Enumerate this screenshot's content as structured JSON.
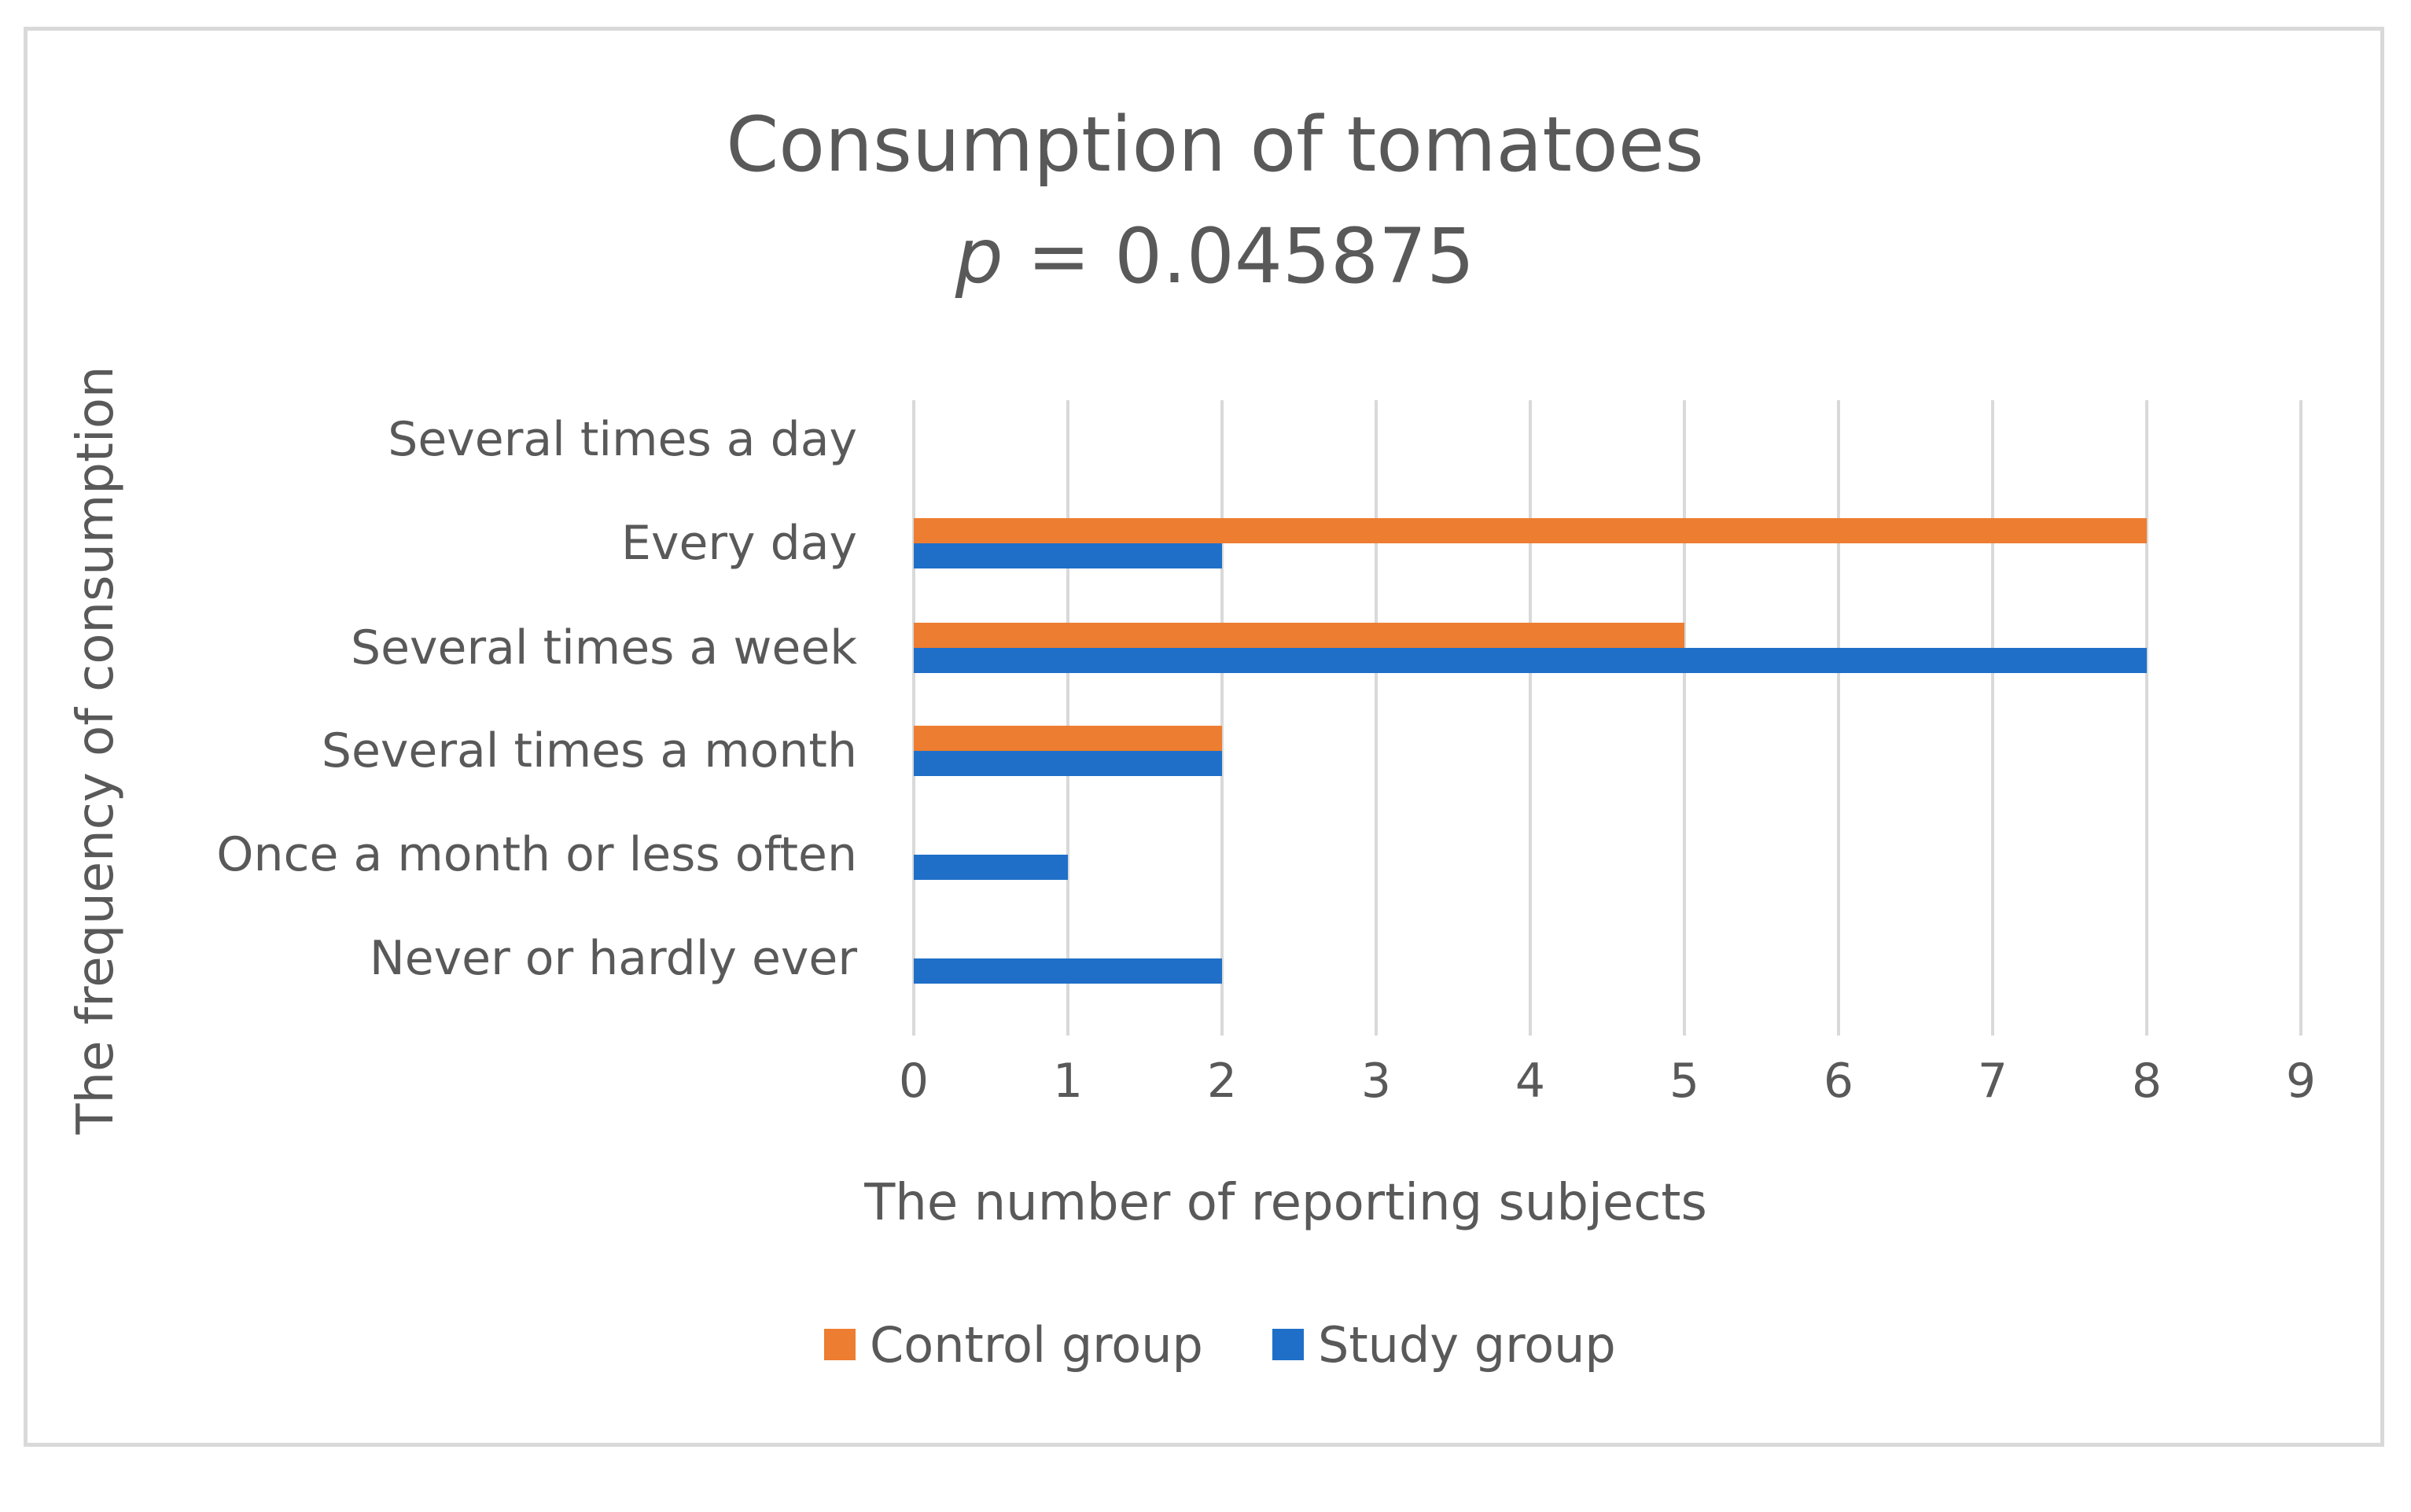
{
  "chart_data": {
    "type": "bar",
    "orientation": "horizontal",
    "title": "Consumption of tomatoes",
    "subtitle_var": "p",
    "subtitle_eq": " = 0.045875",
    "xlabel": "The number of reporting subjects",
    "ylabel": "The frequency of consumption",
    "xlim": [
      0,
      9
    ],
    "xticks": [
      "0",
      "1",
      "2",
      "3",
      "4",
      "5",
      "6",
      "7",
      "8",
      "9"
    ],
    "grid": true,
    "legend_position": "bottom",
    "categories": [
      "Several times a day",
      "Every day",
      "Several times a week",
      "Several times a month",
      "Once a month or less often",
      "Never or hardly ever"
    ],
    "series": [
      {
        "name": "Control group",
        "color": "#ed7d31",
        "values": [
          0,
          8,
          5,
          2,
          0,
          0
        ]
      },
      {
        "name": "Study group",
        "color": "#1f6fc8",
        "values": [
          0,
          2,
          8,
          2,
          1,
          2
        ]
      }
    ]
  }
}
